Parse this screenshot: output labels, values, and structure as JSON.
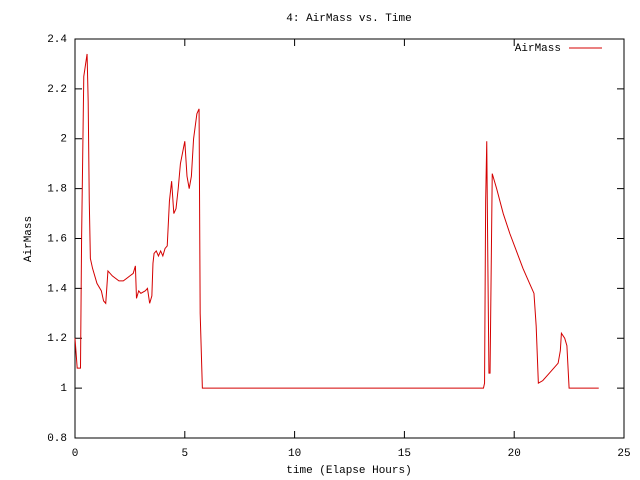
{
  "chart_data": {
    "type": "line",
    "title": "4: AirMass vs. Time",
    "x_label": "time (Elapse Hours)",
    "y_label": "AirMass",
    "xlim": [
      0,
      25
    ],
    "xticks": [
      0,
      5,
      10,
      15,
      20,
      25
    ],
    "ylim": [
      0.8,
      2.4
    ],
    "yticks": [
      0.8,
      1,
      1.2,
      1.4,
      1.6,
      1.8,
      2,
      2.2,
      2.4
    ],
    "legend": "upper right",
    "x": [
      0,
      0.1,
      0.25,
      0.3,
      0.4,
      0.55,
      0.6,
      0.65,
      0.7,
      0.8,
      1.0,
      1.2,
      1.3,
      1.4,
      1.5,
      1.7,
      2.0,
      2.2,
      2.5,
      2.65,
      2.75,
      2.8,
      2.9,
      3.0,
      3.2,
      3.3,
      3.4,
      3.5,
      3.55,
      3.6,
      3.7,
      3.8,
      3.9,
      4.0,
      4.1,
      4.2,
      4.3,
      4.4,
      4.5,
      4.6,
      4.7,
      4.8,
      5.0,
      5.1,
      5.2,
      5.3,
      5.4,
      5.55,
      5.65,
      5.7,
      5.8,
      18.6,
      18.65,
      18.7,
      18.75,
      18.8,
      18.85,
      18.9,
      19.0,
      19.2,
      19.5,
      19.8,
      20.1,
      20.4,
      20.7,
      20.9,
      21.0,
      21.1,
      21.3,
      21.6,
      21.8,
      22.0,
      22.1,
      22.15,
      22.3,
      22.4,
      22.5,
      23.85
    ],
    "series": [
      {
        "name": "AirMass",
        "color": "#d40000",
        "values": [
          1.2,
          1.08,
          1.08,
          1.6,
          2.25,
          2.34,
          2.15,
          1.75,
          1.52,
          1.48,
          1.42,
          1.39,
          1.35,
          1.34,
          1.47,
          1.45,
          1.43,
          1.43,
          1.45,
          1.46,
          1.49,
          1.36,
          1.39,
          1.38,
          1.39,
          1.4,
          1.34,
          1.37,
          1.5,
          1.54,
          1.55,
          1.53,
          1.55,
          1.53,
          1.56,
          1.57,
          1.75,
          1.83,
          1.7,
          1.72,
          1.8,
          1.9,
          1.99,
          1.85,
          1.8,
          1.85,
          2.0,
          2.1,
          2.12,
          1.3,
          1.0,
          1.0,
          1.02,
          1.75,
          1.99,
          1.5,
          1.06,
          1.06,
          1.86,
          1.8,
          1.7,
          1.62,
          1.55,
          1.48,
          1.42,
          1.38,
          1.25,
          1.02,
          1.03,
          1.06,
          1.08,
          1.1,
          1.15,
          1.22,
          1.2,
          1.17,
          1.0,
          1.0
        ]
      }
    ]
  }
}
